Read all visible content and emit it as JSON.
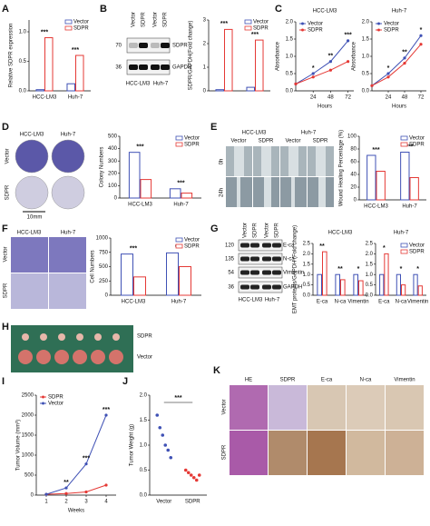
{
  "chart_data": [
    {
      "type": "bar",
      "y_label": "Relative SDPR expression",
      "categories": [
        "HCC-LM3",
        "Huh-7"
      ],
      "series": [
        {
          "name": "Vector",
          "color": "#3f51b5",
          "values": [
            0.02,
            0.12
          ]
        },
        {
          "name": "SDPR",
          "color": "#e53935",
          "values": [
            0.9,
            0.6
          ]
        }
      ],
      "ylim": [
        0,
        1.2
      ],
      "yticks": [
        {
          "value": 0,
          "label": "0.0"
        },
        {
          "value": 0.5,
          "label": "0.5"
        },
        {
          "value": 1,
          "label": "1.0"
        }
      ],
      "legend": "upper right",
      "annotations": [
        "***",
        "***"
      ]
    },
    {
      "type": "bar",
      "y_label": "SDPR/GAPDH(Fold change)",
      "categories": [
        null,
        null
      ],
      "series": [
        {
          "name": "Vector",
          "color": "#3f51b5",
          "values": [
            0.05,
            0.15
          ]
        },
        {
          "name": "SDPR",
          "color": "#e53935",
          "values": [
            2.6,
            2.15
          ]
        }
      ],
      "ylim": [
        0,
        3
      ],
      "yticks": [
        0,
        1,
        2,
        3
      ],
      "legend": "upper right",
      "annotations": [
        "***",
        "***"
      ]
    },
    {
      "type": "line",
      "title": "HCC-LM3",
      "x_label": "Hours",
      "y_label": "Absorbance",
      "x": [
        0,
        24,
        48,
        72
      ],
      "series": [
        {
          "name": "Vector",
          "color": "#3f51b5",
          "values": [
            0.2,
            0.5,
            0.85,
            1.45
          ]
        },
        {
          "name": "SDPR",
          "color": "#e53935",
          "values": [
            0.2,
            0.4,
            0.6,
            0.85
          ]
        }
      ],
      "xlim": [
        0,
        80
      ],
      "xticks": [
        24,
        48,
        72
      ],
      "ylim": [
        0,
        2
      ],
      "yticks": [
        {
          "value": 0,
          "label": "0.0"
        },
        {
          "value": 0.5,
          "label": "0.5"
        },
        {
          "value": 1,
          "label": "1.0"
        },
        {
          "value": 1.5,
          "label": "1.5"
        },
        {
          "value": 2,
          "label": "2.0"
        }
      ],
      "legend": "upper left",
      "annotations": [
        "*",
        "**",
        "***"
      ]
    },
    {
      "type": "line",
      "title": "Huh-7",
      "x_label": "Hours",
      "y_label": "Absorbance",
      "x": [
        0,
        24,
        48,
        72
      ],
      "series": [
        {
          "name": "Vector",
          "color": "#3f51b5",
          "values": [
            0.15,
            0.5,
            0.95,
            1.6
          ]
        },
        {
          "name": "SDPR",
          "color": "#e53935",
          "values": [
            0.15,
            0.4,
            0.8,
            1.35
          ]
        }
      ],
      "xlim": [
        0,
        80
      ],
      "xticks": [
        24,
        48,
        72
      ],
      "ylim": [
        0,
        2
      ],
      "yticks": [
        {
          "value": 0,
          "label": "0.0"
        },
        {
          "value": 0.5,
          "label": "0.5"
        },
        {
          "value": 1,
          "label": "1.0"
        },
        {
          "value": 1.5,
          "label": "1.5"
        },
        {
          "value": 2,
          "label": "2.0"
        }
      ],
      "legend": "upper left",
      "annotations": [
        "*",
        "**",
        "*"
      ]
    },
    {
      "type": "bar",
      "y_label": "Colony Numbers",
      "categories": [
        "HCC-LM3",
        "Huh-7"
      ],
      "series": [
        {
          "name": "Vector",
          "color": "#3f51b5",
          "values": [
            370,
            75
          ]
        },
        {
          "name": "SDPR",
          "color": "#e53935",
          "values": [
            150,
            40
          ]
        }
      ],
      "ylim": [
        0,
        500
      ],
      "yticks": [
        0,
        100,
        200,
        300,
        400,
        500
      ],
      "legend": "upper right",
      "annotations": [
        "***",
        "***"
      ]
    },
    {
      "type": "bar",
      "y_label": "Wound Healing Percentage (%)",
      "categories": [
        "HCC-LM3",
        "Huh-7"
      ],
      "series": [
        {
          "name": "Vector",
          "color": "#3f51b5",
          "values": [
            70,
            75
          ]
        },
        {
          "name": "SDPR",
          "color": "#e53935",
          "values": [
            45,
            35
          ]
        }
      ],
      "ylim": [
        0,
        100
      ],
      "yticks": [
        0,
        20,
        40,
        60,
        80,
        100
      ],
      "legend": "upper right",
      "annotations": [
        "***",
        "***"
      ]
    },
    {
      "type": "bar",
      "y_label": "Cell Numbers",
      "categories": [
        "HCC-LM3",
        "Huh-7"
      ],
      "series": [
        {
          "name": "Vector",
          "color": "#3f51b5",
          "values": [
            720,
            740
          ]
        },
        {
          "name": "SDPR",
          "color": "#e53935",
          "values": [
            320,
            500
          ]
        }
      ],
      "ylim": [
        0,
        1000
      ],
      "yticks": [
        0,
        250,
        500,
        750,
        1000
      ],
      "legend": "upper right",
      "annotations": [
        "***",
        "***"
      ]
    },
    {
      "type": "bar",
      "title": "HCC-LM3",
      "y_label": "EMT proteins/GAPDH (Fold change)",
      "categories": [
        "E-ca",
        "N-ca",
        "Vimentin"
      ],
      "series": [
        {
          "color": "#3f51b5",
          "values": [
            1,
            1,
            1
          ]
        },
        {
          "color": "#e53935",
          "values": [
            2.1,
            0.75,
            0.7
          ]
        }
      ],
      "ylim": [
        0,
        2.5
      ],
      "yticks": [
        {
          "value": 0,
          "label": "0.0"
        },
        {
          "value": 0.5,
          "label": "0.5"
        },
        {
          "value": 1,
          "label": "1.0"
        },
        {
          "value": 1.5,
          "label": "1.5"
        },
        {
          "value": 2,
          "label": "2.0"
        },
        {
          "value": 2.5,
          "label": "2.5"
        }
      ],
      "annotations": [
        "**",
        "**",
        "*"
      ]
    },
    {
      "type": "bar",
      "title": "Huh-7",
      "categories": [
        "E-ca",
        "N-ca",
        "Vimentin"
      ],
      "series": [
        {
          "name": "Vector",
          "color": "#3f51b5",
          "values": [
            1,
            1,
            1
          ]
        },
        {
          "name": "SDPR",
          "color": "#e53935",
          "values": [
            2.0,
            0.5,
            0.45
          ]
        }
      ],
      "ylim": [
        0,
        2.5
      ],
      "yticks": [
        {
          "value": 0,
          "label": "0.0"
        },
        {
          "value": 0.5,
          "label": "0.5"
        },
        {
          "value": 1,
          "label": "1.0"
        },
        {
          "value": 1.5,
          "label": "1.5"
        },
        {
          "value": 2,
          "label": "2.0"
        },
        {
          "value": 2.5,
          "label": "2.5"
        }
      ],
      "legend": "upper right",
      "annotations": [
        "*",
        "*",
        "*"
      ]
    },
    {
      "type": "line",
      "x_label": "Weeks",
      "y_label": "Tumor Volume (mm³)",
      "x": [
        1,
        2,
        3,
        4
      ],
      "series": [
        {
          "name": "SDPR",
          "color": "#e53935",
          "values": [
            20,
            40,
            80,
            250
          ]
        },
        {
          "name": "Vector",
          "color": "#3f51b5",
          "values": [
            20,
            180,
            780,
            2000
          ]
        }
      ],
      "xlim": [
        0.5,
        4.5
      ],
      "xticks": [
        1,
        2,
        3,
        4
      ],
      "ylim": [
        0,
        2500
      ],
      "yticks": [
        0,
        500,
        1000,
        1500,
        2000,
        2500
      ],
      "legend": "upper left",
      "annotations": [
        "**",
        "***",
        "***"
      ]
    },
    {
      "type": "strip",
      "y_label": "Tumor Weight (g)",
      "categories": [
        "Vector",
        "SDPR"
      ],
      "colors": [
        "#3f51b5",
        "#e53935"
      ],
      "values": [
        [
          1.6,
          1.35,
          1.2,
          1.0,
          0.9,
          0.75
        ],
        [
          0.5,
          0.45,
          0.4,
          0.35,
          0.3,
          0.4
        ]
      ],
      "ylim": [
        0,
        2
      ],
      "yticks": [
        {
          "value": 0,
          "label": "0.0"
        },
        {
          "value": 0.5,
          "label": "0.5"
        },
        {
          "value": 1,
          "label": "1.0"
        },
        {
          "value": 1.5,
          "label": "1.5"
        },
        {
          "value": 2,
          "label": "2.0"
        }
      ],
      "annotations": [
        "***"
      ]
    }
  ],
  "figure": {
    "panels": [
      "A",
      "B",
      "C",
      "D",
      "E",
      "F",
      "G",
      "H",
      "I",
      "J",
      "K"
    ],
    "B_blot": {
      "lanes": [
        "Vector",
        "SDPR",
        "Vector",
        "SDPR"
      ],
      "markers": [
        "70",
        "36"
      ],
      "proteins": [
        "SDPR",
        "GAPDH"
      ],
      "cells": [
        "HCC-LM3",
        "Huh-7"
      ]
    },
    "D_images": {
      "cells": [
        "HCC-LM3",
        "Huh-7"
      ],
      "rows": [
        "Vector",
        "SDPR"
      ],
      "scale": "10mm"
    },
    "E_images": {
      "cells": [
        "HCC-LM3",
        "Huh-7"
      ],
      "lanes": [
        "Vector",
        "SDPR",
        "Vector",
        "SDPR"
      ],
      "times": [
        "0h",
        "24h"
      ]
    },
    "F_images": {
      "cells": [
        "HCC-LM3",
        "Huh-7"
      ],
      "rows": [
        "Vector",
        "SDPR"
      ]
    },
    "G_blot": {
      "lanes": [
        "Vector",
        "SDPR",
        "Vector",
        "SDPR"
      ],
      "markers": [
        "120",
        "135",
        "54",
        "36"
      ],
      "proteins": [
        "E-ca",
        "N-ca",
        "Vimentin",
        "GAPDH"
      ],
      "cells": [
        "HCC-LM3",
        "Huh-7"
      ]
    },
    "H_image": {
      "rows": [
        "SDPR",
        "Vector"
      ]
    },
    "K_images": {
      "stains": [
        "HE",
        "SDPR",
        "E-ca",
        "N-ca",
        "Vimentin"
      ],
      "rows": [
        "Vector",
        "SDPR"
      ]
    }
  }
}
